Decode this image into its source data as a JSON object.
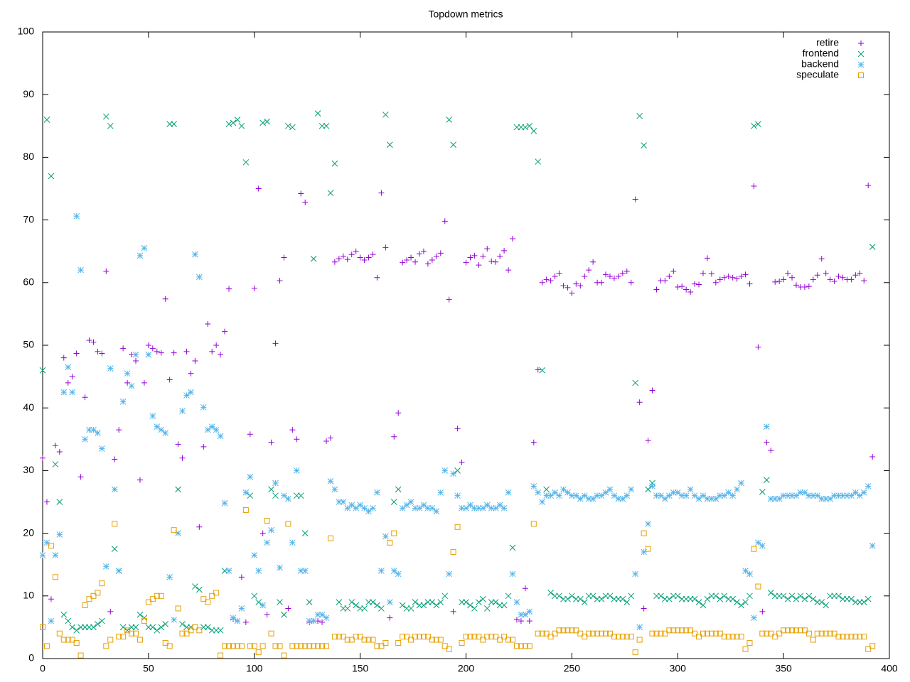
{
  "chart_data": {
    "type": "scatter",
    "title": "Topdown metrics",
    "xlim": [
      0,
      400
    ],
    "xticks": [
      0,
      50,
      100,
      150,
      200,
      250,
      300,
      350,
      400
    ],
    "ylim": [
      0,
      100
    ],
    "yticks": [
      0,
      10,
      20,
      30,
      40,
      50,
      60,
      70,
      80,
      90,
      100
    ],
    "grid": false,
    "legend": "top-right",
    "x": [
      0,
      2,
      4,
      6,
      8,
      10,
      12,
      14,
      16,
      18,
      20,
      22,
      24,
      26,
      28,
      30,
      32,
      34,
      36,
      38,
      40,
      42,
      44,
      46,
      48,
      50,
      52,
      54,
      56,
      58,
      60,
      62,
      64,
      66,
      68,
      70,
      72,
      74,
      76,
      78,
      80,
      82,
      84,
      86,
      88,
      90,
      92,
      94,
      96,
      98,
      100,
      102,
      104,
      106,
      108,
      110,
      112,
      114,
      116,
      118,
      120,
      122,
      124,
      126,
      128,
      130,
      132,
      134,
      136,
      138,
      140,
      142,
      144,
      146,
      148,
      150,
      152,
      154,
      156,
      158,
      160,
      162,
      164,
      166,
      168,
      170,
      172,
      174,
      176,
      178,
      180,
      182,
      184,
      186,
      188,
      190,
      192,
      194,
      196,
      198,
      200,
      202,
      204,
      206,
      208,
      210,
      212,
      214,
      216,
      218,
      220,
      222,
      224,
      226,
      228,
      230,
      232,
      234,
      236,
      238,
      240,
      242,
      244,
      246,
      248,
      250,
      252,
      254,
      256,
      258,
      260,
      262,
      264,
      266,
      268,
      270,
      272,
      274,
      276,
      278,
      280,
      282,
      284,
      286,
      288,
      290,
      292,
      294,
      296,
      298,
      300,
      302,
      304,
      306,
      308,
      310,
      312,
      314,
      316,
      318,
      320,
      322,
      324,
      326,
      328,
      330,
      332,
      334,
      336,
      338,
      340,
      342,
      344,
      346,
      348,
      350,
      352,
      354,
      356,
      358,
      360,
      362,
      364,
      366,
      368,
      370,
      372,
      374,
      376,
      378,
      380,
      382,
      384,
      386,
      388,
      390,
      392
    ],
    "series": [
      {
        "name": "retire",
        "color": "#9400d3",
        "marker": "plus",
        "values": [
          32,
          25,
          9.5,
          34,
          33,
          48,
          44,
          45,
          48.7,
          29,
          41.7,
          50.8,
          50.5,
          49,
          48.7,
          61.8,
          7.5,
          31.8,
          36.5,
          49.5,
          44,
          48.5,
          47.5,
          28.5,
          44,
          50,
          49.5,
          49,
          48.8,
          57.4,
          44.5,
          48.8,
          34.2,
          32,
          49,
          45.5,
          47.5,
          21,
          33.8,
          53.4,
          49,
          50,
          48.5,
          52.2,
          59,
          6.3,
          6,
          13,
          5.8,
          35.8,
          59.1,
          75,
          20,
          7,
          34.5,
          50.3,
          60.3,
          64,
          8,
          36.5,
          35,
          74.2,
          72.8,
          5.8,
          6,
          6,
          5.8,
          34.7,
          35.2,
          63.3,
          63.8,
          64.2,
          63.7,
          64.5,
          65,
          64,
          63.6,
          64,
          64.5,
          60.8,
          74.3,
          65.6,
          6.5,
          35.4,
          39.2,
          63.2,
          63.6,
          64,
          63.3,
          64.6,
          65,
          63,
          63.6,
          64.2,
          64.7,
          69.8,
          57.3,
          7.5,
          36.7,
          31.3,
          63.2,
          64,
          64.3,
          62.8,
          64.2,
          65.4,
          63.4,
          63.3,
          64.2,
          65.1,
          62,
          67,
          6.2,
          6,
          11.2,
          6,
          34.5,
          46.1,
          60,
          60.5,
          60.3,
          61,
          61.5,
          59.5,
          59.2,
          58.3,
          59.8,
          59.5,
          61,
          62,
          63.3,
          60,
          60,
          61.3,
          61,
          60.7,
          61,
          61.5,
          61.8,
          60,
          73.3,
          40.9,
          8,
          34.8,
          42.8,
          58.9,
          60.3,
          60.3,
          61,
          61.8,
          59.3,
          59.4,
          58.9,
          58.5,
          59.8,
          59.7,
          61.5,
          63.9,
          61.4,
          60,
          60.5,
          60.8,
          61,
          60.8,
          60.6,
          61,
          61.3,
          59.8,
          75.4,
          49.7,
          7.5,
          34.5,
          33.2,
          60.1,
          60.2,
          60.5,
          61.5,
          60.8,
          59.6,
          59.3,
          59.3,
          59.4,
          60.5,
          61.2,
          63.8,
          61.5,
          60.5,
          60.2,
          61,
          60.8,
          60.5,
          60.5,
          61.2,
          61.5,
          60.3,
          75.5,
          32.2
        ]
      },
      {
        "name": "frontend",
        "color": "#009e73",
        "marker": "cross",
        "values": [
          46,
          86,
          77,
          31,
          25,
          7,
          6,
          5,
          4.5,
          5,
          5,
          5,
          5,
          5.5,
          6,
          86.5,
          85,
          17.5,
          14,
          5,
          4.5,
          5,
          5,
          7,
          6.5,
          5,
          5,
          4.5,
          5,
          5.5,
          85.3,
          85.3,
          27,
          5.5,
          5,
          5,
          11.5,
          11,
          5,
          5,
          4.5,
          4.5,
          4.5,
          14,
          85.3,
          85.5,
          86,
          85,
          79.2,
          26,
          10,
          9,
          85.5,
          85.7,
          27,
          26,
          9,
          7,
          85,
          84.8,
          26,
          26,
          20,
          9,
          63.8,
          87,
          85,
          85,
          74.3,
          79,
          9,
          8,
          8,
          9,
          8.5,
          8,
          8,
          9,
          9,
          8.5,
          8,
          86.8,
          82,
          25,
          27,
          8.5,
          8,
          8,
          9,
          8.5,
          8.5,
          9,
          9,
          8.5,
          9,
          10,
          86,
          82,
          30,
          9,
          9,
          8.5,
          8,
          9,
          9.5,
          8,
          9,
          9,
          8.5,
          8.5,
          10,
          17.7,
          84.8,
          84.8,
          84.8,
          85,
          84.2,
          79.3,
          46,
          27,
          10.5,
          10,
          10,
          9.5,
          9.5,
          10,
          9.5,
          9.5,
          9,
          10,
          10,
          9.5,
          9.5,
          10,
          10,
          9.5,
          9.5,
          9.5,
          9,
          10,
          44,
          86.6,
          81.9,
          27,
          28,
          10,
          10,
          9.5,
          9.5,
          10,
          10,
          9.5,
          9.5,
          9.5,
          9.5,
          9,
          8.5,
          9.5,
          10,
          10,
          9.5,
          10,
          9.5,
          9.5,
          9,
          8.5,
          9,
          10,
          85,
          85.3,
          26.6,
          28.5,
          10.5,
          10,
          10,
          10,
          9.5,
          10,
          9.5,
          10,
          9.5,
          10,
          9.5,
          9,
          9,
          8.5,
          10,
          10,
          10,
          9.5,
          9.5,
          9.5,
          9,
          9,
          9,
          9.5,
          65.7
        ]
      },
      {
        "name": "backend",
        "color": "#56b4e9",
        "marker": "star",
        "values": [
          16.5,
          18.5,
          6,
          16.5,
          19.8,
          42.5,
          46.5,
          42.5,
          70.6,
          62,
          35,
          36.5,
          36.5,
          36,
          33.5,
          14.7,
          46.3,
          27,
          14,
          41,
          45.5,
          43.5,
          48.5,
          64.3,
          65.5,
          48.5,
          38.7,
          37,
          36.5,
          36,
          13,
          6.2,
          20,
          39.5,
          42,
          42.5,
          64.5,
          60.9,
          40.1,
          36.5,
          37,
          36.5,
          35.5,
          24.8,
          14,
          6.5,
          6,
          8,
          26.5,
          29,
          16.5,
          14,
          8.5,
          18.5,
          20.5,
          28,
          14.5,
          26,
          25.5,
          18.5,
          30,
          14,
          14,
          6,
          6,
          7,
          7,
          6.5,
          28.3,
          27,
          25,
          25,
          24,
          24.5,
          24,
          24.5,
          24,
          23.5,
          24,
          26.5,
          14,
          19.5,
          9,
          14,
          13.5,
          24,
          24.5,
          25,
          24,
          24,
          24.5,
          24,
          24,
          23.5,
          26.5,
          30,
          13.5,
          29.5,
          26,
          24,
          24,
          24.5,
          24,
          24,
          24,
          24.5,
          24,
          24,
          24.5,
          24,
          26.5,
          13.5,
          9,
          7,
          7,
          7.5,
          27.5,
          26.5,
          25,
          26,
          26,
          26.5,
          26,
          27,
          26.5,
          26,
          26,
          25.5,
          26,
          25.5,
          25.5,
          26,
          26,
          26.5,
          27,
          26,
          25.5,
          25.5,
          26,
          27,
          13.5,
          5,
          17,
          21.5,
          27.5,
          26,
          26,
          25.5,
          26,
          26.5,
          26.5,
          26,
          26,
          27,
          26,
          25.5,
          26,
          25.5,
          25.5,
          25.5,
          26,
          26,
          26.5,
          26,
          27,
          28,
          14,
          13.5,
          6.5,
          18.5,
          18,
          37,
          25.5,
          25.5,
          25.5,
          26,
          26,
          26,
          26,
          26.5,
          26.5,
          26,
          26,
          26,
          25.5,
          25.5,
          25.5,
          26,
          26,
          26,
          26,
          26,
          26.5,
          26,
          26.5,
          27.5,
          18
        ]
      },
      {
        "name": "speculate",
        "color": "#e69f00",
        "marker": "square",
        "values": [
          5,
          2,
          18,
          13,
          4,
          3,
          3,
          3,
          2.5,
          0.5,
          8.5,
          9.5,
          10,
          10.5,
          12,
          2,
          3,
          21.5,
          3.5,
          3.5,
          4.5,
          4,
          4,
          3,
          6,
          9,
          9.5,
          10,
          10,
          2.5,
          2,
          20.5,
          8,
          4,
          4,
          4.5,
          5,
          4.5,
          9.5,
          9,
          10,
          10.5,
          0.5,
          2,
          2,
          2,
          2,
          2,
          23.7,
          2,
          2,
          1,
          2,
          22,
          4,
          2,
          2,
          0.5,
          21.5,
          2,
          2,
          2,
          2,
          2,
          2,
          2,
          2,
          2,
          19.2,
          3.5,
          3.5,
          3.5,
          3,
          3,
          3.5,
          3.5,
          3,
          3,
          3,
          2,
          2,
          2.5,
          18.5,
          20,
          2.5,
          3.5,
          3.5,
          3,
          3.5,
          3.5,
          3.5,
          3.5,
          3,
          3,
          3,
          2,
          1.5,
          17,
          21,
          2.5,
          3.5,
          3.5,
          3.5,
          3.5,
          3,
          3.5,
          3.5,
          3.5,
          3,
          3.5,
          3,
          3,
          2,
          2,
          2,
          2,
          21.5,
          4,
          4,
          4,
          3.5,
          4,
          4.5,
          4.5,
          4.5,
          4.5,
          4.5,
          4,
          3.5,
          4,
          4,
          4,
          4,
          4,
          4,
          3.5,
          3.5,
          3.5,
          3.5,
          3.5,
          1,
          3,
          20,
          17.5,
          4,
          4,
          4,
          4,
          4.5,
          4.5,
          4.5,
          4.5,
          4.5,
          4.5,
          4,
          3.5,
          4,
          4,
          4,
          4,
          4,
          3.5,
          3.5,
          3.5,
          3.5,
          3.5,
          1.5,
          2.5,
          17.5,
          11.5,
          4,
          4,
          4,
          3.5,
          4,
          4.5,
          4.5,
          4.5,
          4.5,
          4.5,
          4.5,
          4,
          3,
          4,
          4,
          4,
          4,
          4,
          3.5,
          3.5,
          3.5,
          3.5,
          3.5,
          3.5,
          3.5,
          1.5,
          2
        ]
      }
    ]
  }
}
